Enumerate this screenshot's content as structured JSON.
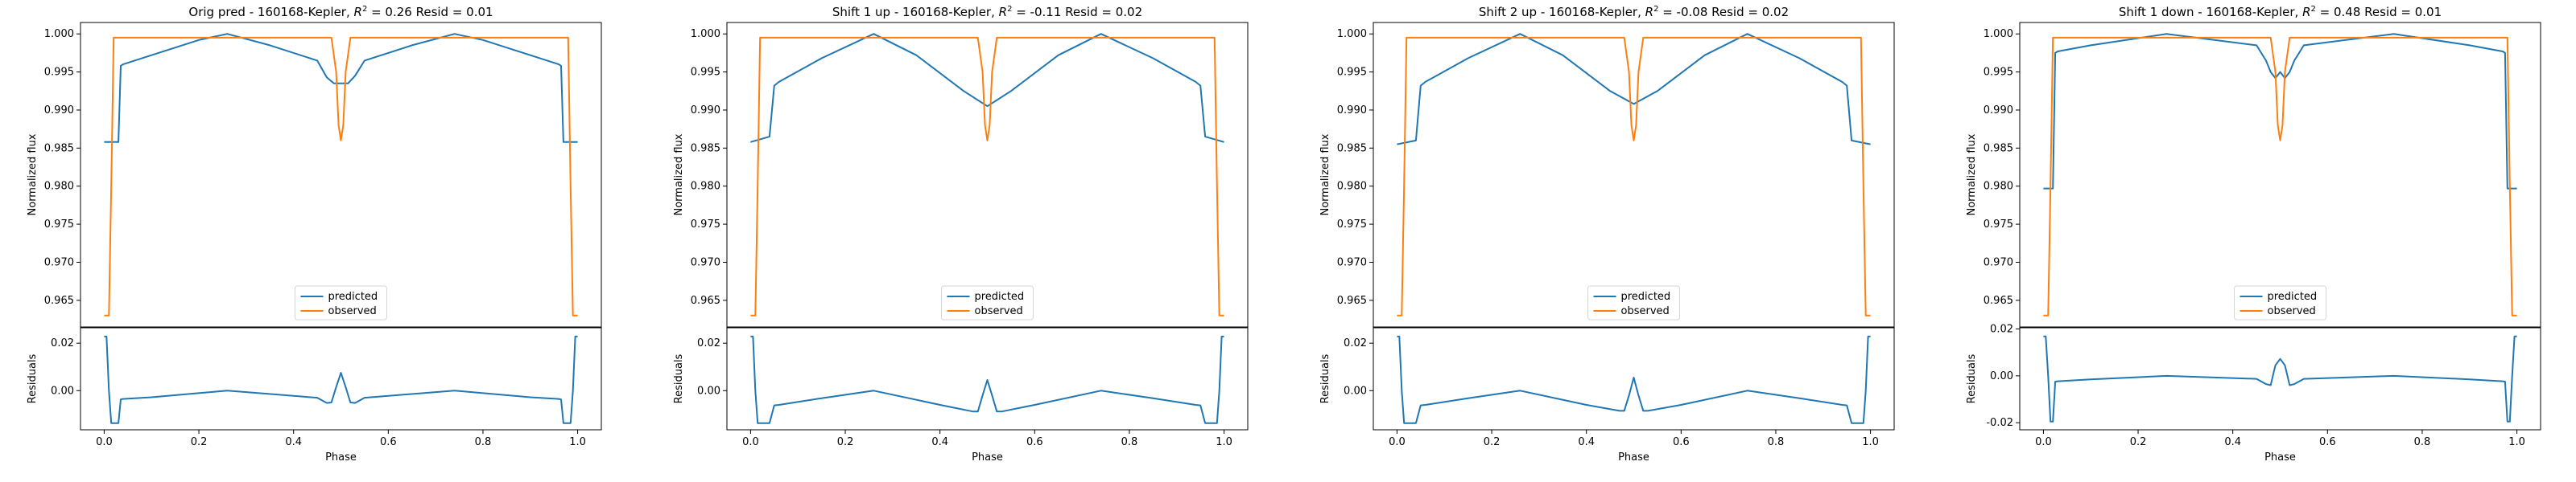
{
  "colors": {
    "predicted": "#1f77b4",
    "observed": "#ff7f0e",
    "axes": "#000000",
    "background": "#ffffff"
  },
  "shared": {
    "ylabel_top": "Normalized flux",
    "ylabel_bottom": "Residuals",
    "xlabel": "Phase",
    "legend": [
      "predicted",
      "observed"
    ],
    "legend_position": "lower center",
    "x_ticks": [
      "0.0",
      "0.2",
      "0.4",
      "0.6",
      "0.8",
      "1.0"
    ],
    "y_ticks_top": [
      "0.965",
      "0.970",
      "0.975",
      "0.980",
      "0.985",
      "0.990",
      "0.995",
      "1.000"
    ]
  },
  "panels": [
    {
      "title_prefix": "Orig pred - 160168-Kepler, ",
      "r2_symbol": "R",
      "r2_sup": "2",
      "title_suffix": " = 0.26 Resid = 0.01",
      "resid_ticks": [
        "0.02",
        "0.00"
      ]
    },
    {
      "title_prefix": "Shift 1 up - 160168-Kepler, ",
      "r2_symbol": "R",
      "r2_sup": "2",
      "title_suffix": " = -0.11 Resid = 0.02",
      "resid_ticks": [
        "0.02",
        "0.00"
      ]
    },
    {
      "title_prefix": "Shift 2 up - 160168-Kepler, ",
      "r2_symbol": "R",
      "r2_sup": "2",
      "title_suffix": " = -0.08 Resid = 0.02",
      "resid_ticks": [
        "0.02",
        "0.00"
      ]
    },
    {
      "title_prefix": "Shift 1 down - 160168-Kepler, ",
      "r2_symbol": "R",
      "r2_sup": "2",
      "title_suffix": " = 0.48 Resid = 0.01",
      "resid_ticks": [
        "0.02",
        "0.00",
        "-0.02"
      ]
    }
  ],
  "chart_data": [
    {
      "type": "line",
      "title": "Orig pred - 160168-Kepler, R^2 = 0.26 Resid = 0.01",
      "xlabel": "Phase",
      "ylabel": "Normalized flux",
      "xlim": [
        -0.05,
        1.05
      ],
      "ylim": [
        0.9615,
        1.0015
      ],
      "grid": false,
      "legend_position": "lower center",
      "series": [
        {
          "name": "predicted",
          "x": [
            0.0,
            0.03,
            0.035,
            0.04,
            0.1,
            0.2,
            0.26,
            0.35,
            0.45,
            0.47,
            0.485,
            0.5,
            0.515,
            0.53,
            0.55,
            0.65,
            0.74,
            0.8,
            0.9,
            0.96,
            0.965,
            0.97,
            1.0
          ],
          "y": [
            0.9858,
            0.9858,
            0.9958,
            0.996,
            0.9972,
            0.9992,
            1.0,
            0.9985,
            0.9965,
            0.9943,
            0.9935,
            0.9935,
            0.9935,
            0.9945,
            0.9965,
            0.9985,
            1.0,
            0.9992,
            0.9972,
            0.996,
            0.9958,
            0.9858,
            0.9858
          ]
        },
        {
          "name": "observed",
          "x": [
            0.0,
            0.01,
            0.015,
            0.02,
            0.48,
            0.49,
            0.495,
            0.5,
            0.505,
            0.51,
            0.52,
            0.98,
            0.985,
            0.99,
            1.0
          ],
          "y": [
            0.963,
            0.963,
            0.98,
            0.9995,
            0.9995,
            0.995,
            0.988,
            0.986,
            0.988,
            0.995,
            0.9995,
            0.9995,
            0.98,
            0.963,
            0.963
          ]
        }
      ],
      "residuals": {
        "ylabel": "Residuals",
        "ylim": [
          -0.0165,
          0.0265
        ],
        "x": [
          0.0,
          0.005,
          0.01,
          0.015,
          0.03,
          0.035,
          0.04,
          0.1,
          0.26,
          0.45,
          0.47,
          0.48,
          0.49,
          0.5,
          0.51,
          0.52,
          0.53,
          0.55,
          0.74,
          0.9,
          0.96,
          0.965,
          0.97,
          0.985,
          0.99,
          0.995,
          1.0
        ],
        "y": [
          0.0228,
          0.0228,
          0.0,
          -0.0137,
          -0.0137,
          -0.0037,
          -0.0035,
          -0.0028,
          0.0,
          -0.003,
          -0.0052,
          -0.005,
          0.0015,
          0.0075,
          0.0015,
          -0.005,
          -0.0052,
          -0.003,
          0.0,
          -0.0028,
          -0.0035,
          -0.0037,
          -0.0137,
          -0.0137,
          0.0,
          0.0228,
          0.0228
        ]
      }
    },
    {
      "type": "line",
      "title": "Shift 1 up - 160168-Kepler, R^2 = -0.11 Resid = 0.02",
      "xlabel": "Phase",
      "ylabel": "Normalized flux",
      "xlim": [
        -0.05,
        1.05
      ],
      "ylim": [
        0.9615,
        1.0015
      ],
      "grid": false,
      "legend_position": "lower center",
      "series": [
        {
          "name": "predicted",
          "x": [
            0.0,
            0.04,
            0.05,
            0.06,
            0.15,
            0.26,
            0.35,
            0.45,
            0.5,
            0.55,
            0.65,
            0.74,
            0.85,
            0.94,
            0.95,
            0.96,
            1.0
          ],
          "y": [
            0.9858,
            0.9865,
            0.9932,
            0.9937,
            0.9968,
            1.0,
            0.9972,
            0.9925,
            0.9905,
            0.9925,
            0.9972,
            1.0,
            0.9968,
            0.9937,
            0.9932,
            0.9865,
            0.9858
          ]
        },
        {
          "name": "observed",
          "x": [
            0.0,
            0.01,
            0.015,
            0.02,
            0.48,
            0.49,
            0.495,
            0.5,
            0.505,
            0.51,
            0.52,
            0.98,
            0.985,
            0.99,
            1.0
          ],
          "y": [
            0.963,
            0.963,
            0.98,
            0.9995,
            0.9995,
            0.995,
            0.988,
            0.986,
            0.988,
            0.995,
            0.9995,
            0.9995,
            0.98,
            0.963,
            0.963
          ]
        }
      ],
      "residuals": {
        "ylabel": "Residuals",
        "ylim": [
          -0.0165,
          0.0265
        ],
        "x": [
          0.0,
          0.005,
          0.01,
          0.015,
          0.04,
          0.05,
          0.06,
          0.15,
          0.26,
          0.4,
          0.47,
          0.48,
          0.49,
          0.5,
          0.51,
          0.52,
          0.53,
          0.6,
          0.74,
          0.85,
          0.94,
          0.95,
          0.96,
          0.985,
          0.99,
          0.995,
          1.0
        ],
        "y": [
          0.0228,
          0.0228,
          0.0,
          -0.0137,
          -0.0137,
          -0.0062,
          -0.006,
          -0.0032,
          0.0,
          -0.006,
          -0.0088,
          -0.0088,
          -0.002,
          0.0045,
          -0.002,
          -0.0088,
          -0.0088,
          -0.006,
          0.0,
          -0.0032,
          -0.006,
          -0.0062,
          -0.0137,
          -0.0137,
          0.0,
          0.0228,
          0.0228
        ]
      }
    },
    {
      "type": "line",
      "title": "Shift 2 up - 160168-Kepler, R^2 = -0.08 Resid = 0.02",
      "xlabel": "Phase",
      "ylabel": "Normalized flux",
      "xlim": [
        -0.05,
        1.05
      ],
      "ylim": [
        0.9615,
        1.0015
      ],
      "grid": false,
      "legend_position": "lower center",
      "series": [
        {
          "name": "predicted",
          "x": [
            0.0,
            0.04,
            0.05,
            0.06,
            0.15,
            0.26,
            0.35,
            0.45,
            0.5,
            0.55,
            0.65,
            0.74,
            0.85,
            0.94,
            0.95,
            0.96,
            1.0
          ],
          "y": [
            0.9855,
            0.986,
            0.9932,
            0.9937,
            0.9968,
            1.0,
            0.9972,
            0.9925,
            0.9908,
            0.9925,
            0.9972,
            1.0,
            0.9968,
            0.9937,
            0.9932,
            0.986,
            0.9855
          ]
        },
        {
          "name": "observed",
          "x": [
            0.0,
            0.01,
            0.015,
            0.02,
            0.48,
            0.49,
            0.495,
            0.5,
            0.505,
            0.51,
            0.52,
            0.98,
            0.985,
            0.99,
            1.0
          ],
          "y": [
            0.963,
            0.963,
            0.98,
            0.9995,
            0.9995,
            0.995,
            0.988,
            0.986,
            0.988,
            0.995,
            0.9995,
            0.9995,
            0.98,
            0.963,
            0.963
          ]
        }
      ],
      "residuals": {
        "ylabel": "Residuals",
        "ylim": [
          -0.0165,
          0.0265
        ],
        "x": [
          0.0,
          0.005,
          0.01,
          0.015,
          0.04,
          0.05,
          0.06,
          0.15,
          0.26,
          0.4,
          0.47,
          0.48,
          0.49,
          0.5,
          0.51,
          0.52,
          0.53,
          0.6,
          0.74,
          0.85,
          0.94,
          0.95,
          0.96,
          0.985,
          0.99,
          0.995,
          1.0
        ],
        "y": [
          0.0228,
          0.0228,
          0.0,
          -0.0137,
          -0.0137,
          -0.0062,
          -0.006,
          -0.0032,
          0.0,
          -0.006,
          -0.0085,
          -0.0085,
          -0.002,
          0.0055,
          -0.002,
          -0.0085,
          -0.0085,
          -0.006,
          0.0,
          -0.0032,
          -0.006,
          -0.0062,
          -0.0137,
          -0.0137,
          0.0,
          0.0228,
          0.0228
        ]
      }
    },
    {
      "type": "line",
      "title": "Shift 1 down - 160168-Kepler, R^2 = 0.48 Resid = 0.01",
      "xlabel": "Phase",
      "ylabel": "Normalized flux",
      "xlim": [
        -0.05,
        1.05
      ],
      "ylim": [
        0.9615,
        1.0015
      ],
      "grid": false,
      "legend_position": "lower center",
      "series": [
        {
          "name": "predicted",
          "x": [
            0.0,
            0.02,
            0.025,
            0.03,
            0.1,
            0.26,
            0.45,
            0.47,
            0.48,
            0.49,
            0.5,
            0.51,
            0.52,
            0.53,
            0.55,
            0.74,
            0.9,
            0.97,
            0.975,
            0.98,
            1.0
          ],
          "y": [
            0.9797,
            0.9797,
            0.9975,
            0.9977,
            0.9985,
            1.0,
            0.9985,
            0.9965,
            0.995,
            0.9942,
            0.995,
            0.9942,
            0.995,
            0.9965,
            0.9985,
            1.0,
            0.9985,
            0.9977,
            0.9975,
            0.9797,
            0.9797
          ]
        },
        {
          "name": "observed",
          "x": [
            0.0,
            0.01,
            0.015,
            0.02,
            0.48,
            0.49,
            0.495,
            0.5,
            0.505,
            0.51,
            0.52,
            0.98,
            0.985,
            0.99,
            1.0
          ],
          "y": [
            0.963,
            0.963,
            0.98,
            0.9995,
            0.9995,
            0.995,
            0.988,
            0.986,
            0.988,
            0.995,
            0.9995,
            0.9995,
            0.98,
            0.963,
            0.963
          ]
        }
      ],
      "residuals": {
        "ylabel": "Residuals",
        "ylim": [
          -0.023,
          0.0205
        ],
        "x": [
          0.0,
          0.005,
          0.01,
          0.015,
          0.02,
          0.025,
          0.03,
          0.1,
          0.26,
          0.45,
          0.47,
          0.48,
          0.49,
          0.5,
          0.51,
          0.52,
          0.53,
          0.55,
          0.74,
          0.9,
          0.97,
          0.975,
          0.98,
          0.985,
          0.99,
          0.995,
          1.0
        ],
        "y": [
          0.0168,
          0.0168,
          0.0,
          -0.0195,
          -0.0195,
          -0.0025,
          -0.0023,
          -0.0015,
          0.0,
          -0.0013,
          -0.0035,
          -0.004,
          0.0045,
          0.0072,
          0.0045,
          -0.004,
          -0.0035,
          -0.0013,
          0.0,
          -0.0015,
          -0.0023,
          -0.0025,
          -0.0195,
          -0.0195,
          0.0,
          0.0168,
          0.0168
        ]
      }
    }
  ]
}
